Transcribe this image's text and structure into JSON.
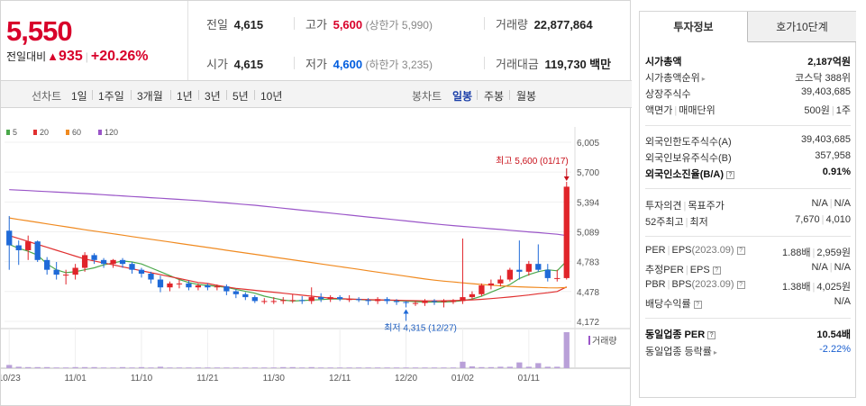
{
  "quote": {
    "price": "5,550",
    "change_label": "전일대비",
    "change_value": "935",
    "change_rate": "+20.26%",
    "prev_close_label": "전일",
    "prev_close": "4,615",
    "open_label": "시가",
    "open": "4,615",
    "high_label": "고가",
    "high": "5,600",
    "upper_limit": "(상한가 5,990)",
    "low_label": "저가",
    "low": "4,600",
    "lower_limit": "(하한가 3,235)",
    "volume_label": "거래량",
    "volume": "22,877,864",
    "amount_label": "거래대금",
    "amount": "119,730",
    "amount_unit": "백만"
  },
  "line_tabs": {
    "label": "선차트",
    "items": [
      "1일",
      "1주일",
      "3개월",
      "1년",
      "3년",
      "5년",
      "10년"
    ]
  },
  "candle_tabs": {
    "label": "봉차트",
    "items": [
      "일봉",
      "주봉",
      "월봉"
    ],
    "active": "일봉"
  },
  "chart": {
    "legend": [
      {
        "name": "5",
        "color": "#4aa84a"
      },
      {
        "name": "20",
        "color": "#e03030"
      },
      {
        "name": "60",
        "color": "#f08a20"
      },
      {
        "name": "120",
        "color": "#9a55c8"
      }
    ],
    "y_ticks": [
      "6,005",
      "5,700",
      "5,394",
      "5,089",
      "4,783",
      "4,478",
      "4,172"
    ],
    "x_ticks": [
      "10/23",
      "11/01",
      "11/10",
      "11/21",
      "11/30",
      "12/11",
      "12/20",
      "01/02",
      "01/11"
    ],
    "high_note": "최고 5,600 (01/17)",
    "low_note": "최저 4,315 (12/27)",
    "volume_label": "거래량"
  },
  "chart_data": {
    "type": "candlestick",
    "y_range": [
      4172,
      6005
    ],
    "dates": [
      "10/23",
      "10/24",
      "10/25",
      "10/26",
      "10/27",
      "10/30",
      "10/31",
      "11/01",
      "11/02",
      "11/03",
      "11/06",
      "11/07",
      "11/08",
      "11/09",
      "11/10",
      "11/13",
      "11/14",
      "11/15",
      "11/16",
      "11/17",
      "11/20",
      "11/21",
      "11/22",
      "11/23",
      "11/24",
      "11/27",
      "11/28",
      "11/29",
      "11/30",
      "12/01",
      "12/04",
      "12/05",
      "12/06",
      "12/07",
      "12/08",
      "12/11",
      "12/12",
      "12/13",
      "12/14",
      "12/15",
      "12/18",
      "12/19",
      "12/20",
      "12/21",
      "12/22",
      "12/26",
      "12/27",
      "12/28",
      "01/02",
      "01/03",
      "01/04",
      "01/05",
      "01/08",
      "01/09",
      "01/10",
      "01/11",
      "01/12",
      "01/15",
      "01/16",
      "01/17"
    ],
    "open": [
      5100,
      4950,
      4900,
      4990,
      4800,
      4700,
      4650,
      4650,
      4720,
      4850,
      4800,
      4760,
      4800,
      4760,
      4700,
      4660,
      4600,
      4520,
      4560,
      4560,
      4520,
      4540,
      4520,
      4530,
      4480,
      4450,
      4420,
      4380,
      4380,
      4380,
      4390,
      4390,
      4380,
      4420,
      4400,
      4420,
      4400,
      4400,
      4390,
      4380,
      4400,
      4380,
      4370,
      4360,
      4360,
      4380,
      4370,
      4380,
      4380,
      4420,
      4450,
      4540,
      4560,
      4600,
      4700,
      4680,
      4760,
      4700,
      4615,
      4615
    ],
    "close": [
      4950,
      4900,
      4990,
      4800,
      4700,
      4650,
      4650,
      4720,
      4850,
      4800,
      4760,
      4800,
      4760,
      4700,
      4660,
      4600,
      4520,
      4560,
      4560,
      4520,
      4540,
      4520,
      4530,
      4480,
      4450,
      4420,
      4380,
      4380,
      4380,
      4390,
      4390,
      4380,
      4420,
      4400,
      4420,
      4400,
      4400,
      4390,
      4380,
      4400,
      4380,
      4370,
      4360,
      4360,
      4380,
      4370,
      4380,
      4380,
      4420,
      4450,
      4540,
      4560,
      4600,
      4700,
      4680,
      4760,
      4700,
      4615,
      4615,
      5550
    ],
    "high": [
      5250,
      5000,
      5050,
      5000,
      4830,
      4780,
      4700,
      4760,
      4880,
      4870,
      4820,
      4810,
      4820,
      4780,
      4720,
      4680,
      4640,
      4580,
      4600,
      4590,
      4560,
      4560,
      4550,
      4550,
      4500,
      4470,
      4440,
      4410,
      4420,
      4420,
      4450,
      4430,
      4520,
      4460,
      4440,
      4440,
      4440,
      4420,
      4410,
      4420,
      4420,
      4400,
      4380,
      4380,
      4400,
      4400,
      4400,
      4400,
      5020,
      4480,
      4560,
      4600,
      4640,
      4720,
      5000,
      4790,
      4960,
      4760,
      4700,
      5600
    ],
    "low": [
      4700,
      4750,
      4800,
      4780,
      4650,
      4600,
      4550,
      4600,
      4680,
      4760,
      4720,
      4720,
      4720,
      4660,
      4620,
      4560,
      4470,
      4480,
      4510,
      4490,
      4490,
      4490,
      4490,
      4440,
      4410,
      4390,
      4360,
      4350,
      4350,
      4350,
      4360,
      4350,
      4350,
      4370,
      4370,
      4380,
      4370,
      4370,
      4340,
      4350,
      4350,
      4340,
      4315,
      4330,
      4330,
      4340,
      4315,
      4350,
      4350,
      4400,
      4430,
      4500,
      4530,
      4580,
      4600,
      4640,
      4680,
      4580,
      4580,
      4600
    ],
    "ma": [
      {
        "name": "5",
        "start": 0,
        "values": [
          4960,
          4920,
          4890,
          4850,
          4760,
          4700,
          4670,
          4680,
          4700,
          4720,
          4750,
          4770,
          4790,
          4780,
          4760,
          4720,
          4680,
          4640,
          4600,
          4570,
          4550,
          4540,
          4530,
          4520,
          4500,
          4480,
          4460,
          4430,
          4410,
          4390,
          4380,
          4385,
          4390,
          4395,
          4400,
          4400,
          4400,
          4395,
          4390,
          4390,
          4390,
          4385,
          4380,
          4375,
          4370,
          4370,
          4370,
          4375,
          4385,
          4400,
          4430,
          4470,
          4510,
          4550,
          4610,
          4650,
          4680,
          4700,
          4690,
          4790
        ]
      },
      {
        "name": "20",
        "start": 0,
        "values": [
          5050,
          5020,
          4990,
          4960,
          4930,
          4900,
          4870,
          4840,
          4810,
          4790,
          4770,
          4750,
          4730,
          4710,
          4690,
          4670,
          4650,
          4630,
          4610,
          4590,
          4570,
          4560,
          4540,
          4525,
          4510,
          4500,
          4490,
          4480,
          4470,
          4460,
          4450,
          4440,
          4430,
          4420,
          4410,
          4405,
          4400,
          4398,
          4395,
          4392,
          4390,
          4388,
          4386,
          4384,
          4382,
          4382,
          4383,
          4385,
          4388,
          4392,
          4398,
          4405,
          4413,
          4422,
          4432,
          4442,
          4455,
          4465,
          4478,
          4525
        ]
      },
      {
        "name": "60",
        "start": 0,
        "values": [
          5230,
          5215,
          5200,
          5185,
          5170,
          5155,
          5140,
          5125,
          5110,
          5096,
          5082,
          5068,
          5054,
          5040,
          5026,
          5012,
          4998,
          4984,
          4970,
          4956,
          4942,
          4928,
          4914,
          4900,
          4886,
          4872,
          4858,
          4844,
          4830,
          4816,
          4802,
          4788,
          4774,
          4760,
          4746,
          4732,
          4718,
          4704,
          4690,
          4676,
          4662,
          4648,
          4634,
          4620,
          4606,
          4594,
          4584,
          4575,
          4566,
          4558,
          4550,
          4542,
          4536,
          4530,
          4526,
          4522,
          4519,
          4516,
          4515,
          4518
        ]
      },
      {
        "name": "120",
        "start": 0,
        "values": [
          5520,
          5515,
          5510,
          5505,
          5500,
          5495,
          5490,
          5485,
          5480,
          5474,
          5468,
          5462,
          5456,
          5450,
          5444,
          5438,
          5432,
          5426,
          5420,
          5414,
          5408,
          5400,
          5392,
          5384,
          5376,
          5368,
          5360,
          5350,
          5340,
          5330,
          5320,
          5310,
          5300,
          5290,
          5280,
          5270,
          5260,
          5250,
          5240,
          5230,
          5220,
          5210,
          5200,
          5190,
          5180,
          5170,
          5160,
          5152,
          5144,
          5136,
          5128,
          5120,
          5112,
          5104,
          5096,
          5088,
          5080,
          5072,
          5064,
          5050
        ]
      }
    ],
    "volume": [
      9,
      4,
      3,
      3,
      3,
      2,
      2,
      3,
      3,
      3,
      2,
      2,
      3,
      2,
      3,
      2,
      4,
      2,
      2,
      2,
      2,
      2,
      2,
      2,
      2,
      2,
      2,
      2,
      2,
      3,
      3,
      2,
      3,
      2,
      2,
      2,
      2,
      2,
      2,
      2,
      2,
      2,
      2,
      2,
      2,
      2,
      2,
      2,
      18,
      5,
      3,
      3,
      4,
      4,
      16,
      4,
      14,
      4,
      4,
      100
    ]
  },
  "info_tabs": [
    "투자정보",
    "호가10단계"
  ],
  "info": {
    "market_cap_label": "시가총액",
    "market_cap": "2,187억원",
    "market_cap_rank_label": "시가총액순위",
    "market_cap_rank": "코스닥 388위",
    "shares_label": "상장주식수",
    "shares": "39,403,685",
    "par_label": "액면가",
    "trade_unit_label": "매매단위",
    "par": "500원",
    "trade_unit": "1주",
    "foreign_limit_label": "외국인한도주식수(A)",
    "foreign_limit": "39,403,685",
    "foreign_hold_label": "외국인보유주식수(B)",
    "foreign_hold": "357,958",
    "foreign_ratio_label": "외국인소진율(B/A)",
    "foreign_ratio": "0.91%",
    "opinion_label": "투자의견",
    "target_label": "목표주가",
    "opinion": "N/A",
    "target": "N/A",
    "wk52_high_label": "52주최고",
    "wk52_low_label": "최저",
    "wk52_high": "7,670",
    "wk52_low": "4,010",
    "per_label": "PER",
    "eps_label": "EPS",
    "eps_year": "(2023.09)",
    "per": "1.88배",
    "eps": "2,959원",
    "est_per_label": "추정PER",
    "est_eps_label": "EPS",
    "est_per": "N/A",
    "est_eps": "N/A",
    "pbr_label": "PBR",
    "bps_label": "BPS",
    "bps_year": "(2023.09)",
    "pbr": "1.38배",
    "bps": "4,025원",
    "div_label": "배당수익률",
    "div": "N/A",
    "ind_per_label": "동일업종 PER",
    "ind_per": "10.54배",
    "ind_rate_label": "동일업종 등락률",
    "ind_rate": "-2.22%"
  }
}
